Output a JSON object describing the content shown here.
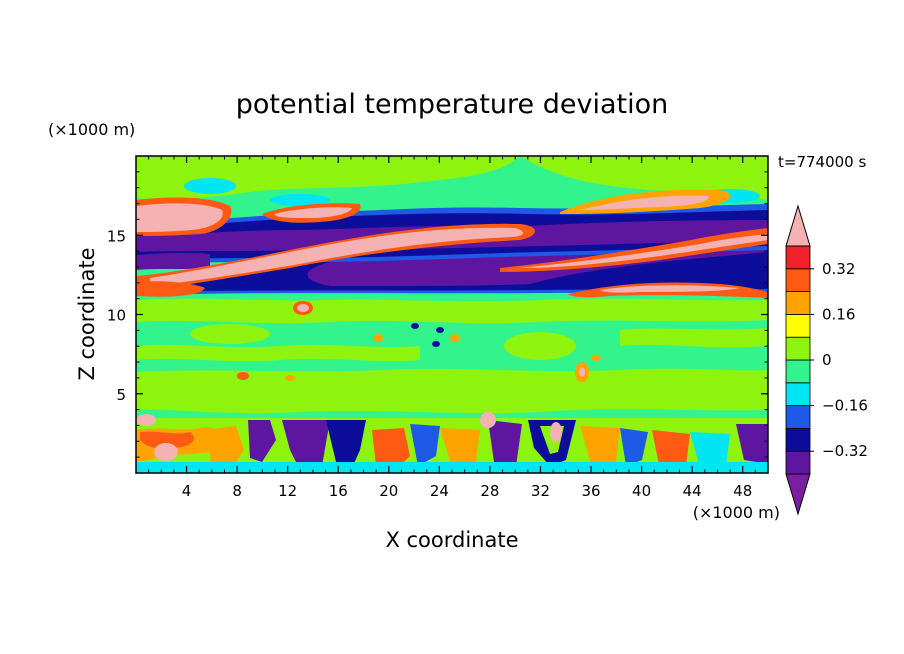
{
  "chart_data": {
    "type": "heatmap",
    "subtype": "filled-contour",
    "title": "potential temperature deviation",
    "time_label": "t=774000 s",
    "xlabel": "X coordinate",
    "ylabel": "Z coordinate",
    "x_unit": "(×1000 m)",
    "y_unit": "(×1000 m)",
    "xlim": [
      0,
      50
    ],
    "ylim": [
      0,
      20
    ],
    "x_ticks": [
      4,
      8,
      12,
      16,
      20,
      24,
      28,
      32,
      36,
      40,
      44,
      48
    ],
    "y_ticks": [
      5,
      10,
      15
    ],
    "grid": false,
    "colorbar": {
      "placement": "right",
      "extend": "both",
      "level_step": 0.08,
      "levels": [
        -0.4,
        -0.32,
        -0.24,
        -0.16,
        -0.08,
        0,
        0.08,
        0.16,
        0.24,
        0.32,
        0.4
      ],
      "labeled_levels": [
        0.32,
        0.16,
        0,
        -0.16,
        -0.32
      ],
      "tick_labels": [
        "0.32",
        "0.16",
        "0",
        "−0.16",
        "−0.32"
      ],
      "colors_low_to_high": [
        "#7b1fa2",
        "#5e16a0",
        "#0d0d9c",
        "#1e5ae6",
        "#00e5f2",
        "#33f48c",
        "#8ef40e",
        "#ffff00",
        "#ffa300",
        "#ff5a14",
        "#f2202a",
        "#f5b2b2"
      ]
    },
    "features": [
      {
        "x": [
          0,
          50
        ],
        "z": [
          11.3,
          12.1
        ],
        "level": "≤ -0.40"
      },
      {
        "x": [
          14,
          50
        ],
        "z": [
          12.1,
          14.0
        ],
        "level": "-0.40 to -0.32"
      },
      {
        "x": [
          0,
          50
        ],
        "z": [
          14.2,
          16.2
        ],
        "level": "≤ -0.40"
      },
      {
        "x": [
          12,
          31
        ],
        "z": [
          14.5,
          15.9
        ],
        "level": "≥ 0.40"
      },
      {
        "x": [
          0,
          50
        ],
        "z": [
          0.2,
          3.6
        ],
        "level": "mixed -0.40 to 0.40"
      }
    ]
  }
}
